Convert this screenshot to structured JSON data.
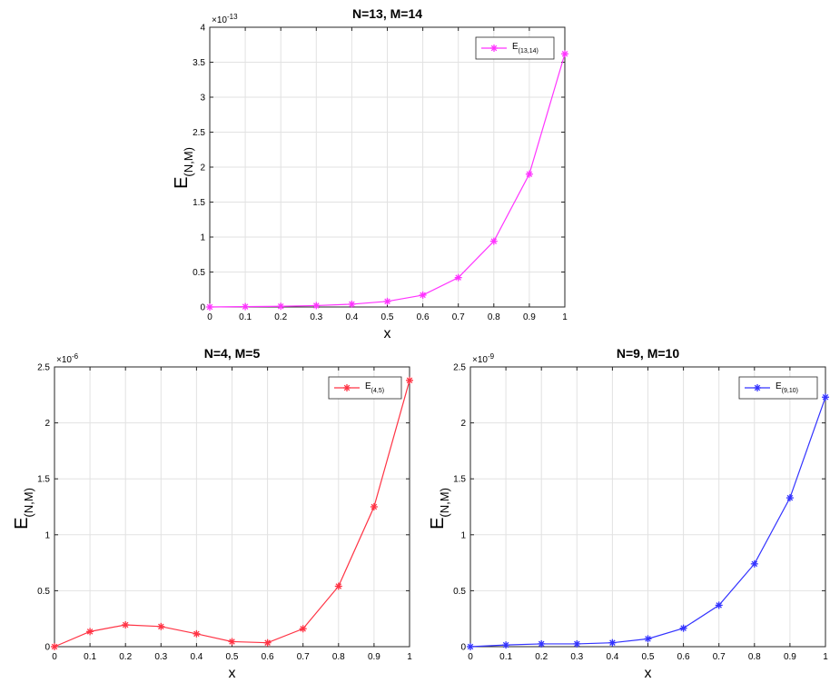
{
  "chart_data": [
    {
      "type": "line",
      "title": "N=13, M=14",
      "xlabel": "x",
      "ylabel": {
        "main": "E",
        "sub": "(N,M)"
      },
      "multiplier": {
        "base": "×10",
        "exp": "-13"
      },
      "xlim": [
        0,
        1
      ],
      "ylim": [
        0,
        4
      ],
      "xticks": [
        "0",
        "0.1",
        "0.2",
        "0.3",
        "0.4",
        "0.5",
        "0.6",
        "0.7",
        "0.8",
        "0.9",
        "1"
      ],
      "yticks": [
        "0",
        "0.5",
        "1",
        "1.5",
        "2",
        "2.5",
        "3",
        "3.5",
        "4"
      ],
      "grid": true,
      "legend_position": "top-right",
      "series": [
        {
          "name": {
            "main": "E",
            "sub": "(13,14)"
          },
          "color": "#ff33ff",
          "marker": "asterisk",
          "x": [
            0,
            0.1,
            0.2,
            0.3,
            0.4,
            0.5,
            0.6,
            0.7,
            0.8,
            0.9,
            1
          ],
          "y": [
            0,
            0.005,
            0.01,
            0.02,
            0.04,
            0.08,
            0.17,
            0.42,
            0.94,
            1.9,
            3.62
          ]
        }
      ]
    },
    {
      "type": "line",
      "title": "N=4, M=5",
      "xlabel": "x",
      "ylabel": {
        "main": "E",
        "sub": "(N,M)"
      },
      "multiplier": {
        "base": "×10",
        "exp": "-6"
      },
      "xlim": [
        0,
        1
      ],
      "ylim": [
        0,
        2.5
      ],
      "xticks": [
        "0",
        "0.1",
        "0.2",
        "0.3",
        "0.4",
        "0.5",
        "0.6",
        "0.7",
        "0.8",
        "0.9",
        "1"
      ],
      "yticks": [
        "0",
        "0.5",
        "1",
        "1.5",
        "2",
        "2.5"
      ],
      "grid": true,
      "legend_position": "top-right",
      "series": [
        {
          "name": {
            "main": "E",
            "sub": "(4,5)"
          },
          "color": "#ff3344",
          "marker": "asterisk",
          "x": [
            0,
            0.1,
            0.2,
            0.3,
            0.4,
            0.5,
            0.6,
            0.7,
            0.8,
            0.9,
            1
          ],
          "y": [
            0,
            0.135,
            0.195,
            0.18,
            0.115,
            0.045,
            0.035,
            0.16,
            0.54,
            1.25,
            2.38
          ]
        }
      ]
    },
    {
      "type": "line",
      "title": "N=9, M=10",
      "xlabel": "x",
      "ylabel": {
        "main": "E",
        "sub": "(N,M)"
      },
      "multiplier": {
        "base": "×10",
        "exp": "-9"
      },
      "xlim": [
        0,
        1
      ],
      "ylim": [
        0,
        2.5
      ],
      "xticks": [
        "0",
        "0.1",
        "0.2",
        "0.3",
        "0.4",
        "0.5",
        "0.6",
        "0.7",
        "0.8",
        "0.9",
        "1"
      ],
      "yticks": [
        "0",
        "0.5",
        "1",
        "1.5",
        "2",
        "2.5"
      ],
      "grid": true,
      "legend_position": "top-right",
      "series": [
        {
          "name": {
            "main": "E",
            "sub": "(9,10)"
          },
          "color": "#3333ff",
          "marker": "asterisk",
          "x": [
            0,
            0.1,
            0.2,
            0.3,
            0.4,
            0.5,
            0.6,
            0.7,
            0.8,
            0.9,
            1
          ],
          "y": [
            0,
            0.015,
            0.025,
            0.025,
            0.035,
            0.07,
            0.165,
            0.37,
            0.74,
            1.33,
            2.23
          ]
        }
      ]
    }
  ]
}
